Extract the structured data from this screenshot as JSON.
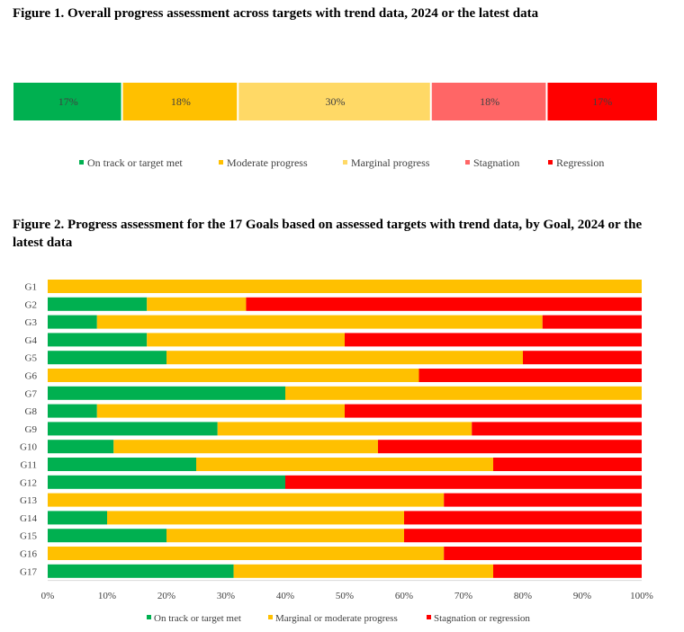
{
  "figure1": {
    "title": "Figure 1. Overall progress assessment across targets with trend data, 2024 or the latest data",
    "chart_data": {
      "type": "bar",
      "orientation": "horizontal-stacked",
      "categories": [
        "On track or target met",
        "Moderate progress",
        "Marginal progress",
        "Stagnation",
        "Regression"
      ],
      "values": [
        17,
        18,
        30,
        18,
        17
      ],
      "value_labels": [
        "17%",
        "18%",
        "30%",
        "18%",
        "17%"
      ],
      "colors": [
        "#00b050",
        "#ffc000",
        "#ffd966",
        "#ff6666",
        "#ff0000"
      ],
      "legend": [
        "On track or target met",
        "Moderate progress",
        "Marginal progress",
        "Stagnation",
        "Regression"
      ],
      "legend_position": "bottom"
    }
  },
  "figure2": {
    "title": "Figure 2. Progress assessment for the 17 Goals based on assessed targets with trend data, by Goal, 2024 or the latest data",
    "chart_data": {
      "type": "bar",
      "orientation": "horizontal-stacked-100",
      "categories": [
        "G1",
        "G2",
        "G3",
        "G4",
        "G5",
        "G6",
        "G7",
        "G8",
        "G9",
        "G10",
        "G11",
        "G12",
        "G13",
        "G14",
        "G15",
        "G16",
        "G17"
      ],
      "series": [
        {
          "name": "On track or target met",
          "color": "#00b050",
          "values": [
            0,
            16.7,
            8.3,
            16.7,
            20,
            0,
            40,
            8.3,
            28.6,
            11.1,
            25,
            40,
            0,
            10,
            20,
            0,
            31.3
          ]
        },
        {
          "name": "Marginal or moderate progress",
          "color": "#ffc000",
          "values": [
            100,
            16.7,
            75,
            33.3,
            60,
            62.5,
            60,
            41.7,
            42.8,
            44.5,
            50,
            0,
            66.7,
            50,
            40,
            66.7,
            43.7
          ]
        },
        {
          "name": "Stagnation or regression",
          "color": "#ff0000",
          "values": [
            0,
            66.6,
            16.7,
            50,
            20,
            37.5,
            0,
            50,
            28.6,
            44.4,
            25,
            60,
            33.3,
            40,
            40,
            33.3,
            25
          ]
        }
      ],
      "xlim": [
        0,
        100
      ],
      "x_ticks": [
        "0%",
        "10%",
        "20%",
        "30%",
        "40%",
        "50%",
        "60%",
        "70%",
        "80%",
        "90%",
        "100%"
      ],
      "grid": false,
      "legend_position": "bottom"
    }
  }
}
